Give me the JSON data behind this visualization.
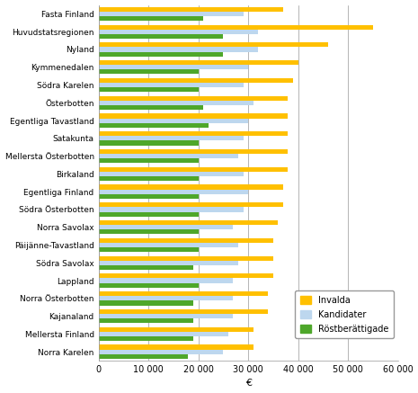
{
  "regions": [
    "Fasta Finland",
    "Huvudstatsregionen",
    "Nyland",
    "Kymmenedalen",
    "Södra Karelen",
    "Österbotten",
    "Egentliga Tavastland",
    "Satakunta",
    "Mellersta Österbotten",
    "Birkaland",
    "Egentliga Finland",
    "Södra Österbotten",
    "Norra Savolax",
    "Päijänne-Tavastland",
    "Södra Savolax",
    "Lappland",
    "Norra Österbotten",
    "Kajanaland",
    "Mellersta Finland",
    "Norra Karelen"
  ],
  "invalda": [
    37000,
    55000,
    46000,
    40000,
    39000,
    38000,
    38000,
    38000,
    38000,
    38000,
    37000,
    37000,
    36000,
    35000,
    35000,
    35000,
    34000,
    34000,
    31000,
    31000
  ],
  "kandidater": [
    29000,
    32000,
    32000,
    30000,
    29000,
    31000,
    30000,
    29000,
    28000,
    29000,
    30000,
    29000,
    27000,
    28000,
    28000,
    27000,
    27000,
    27000,
    26000,
    25000
  ],
  "rostberättigade": [
    21000,
    25000,
    25000,
    20000,
    20000,
    21000,
    22000,
    20000,
    20000,
    20000,
    20000,
    20000,
    20000,
    20000,
    19000,
    20000,
    19000,
    19000,
    19000,
    18000
  ],
  "color_invalda": "#FFC000",
  "color_kandidater": "#BDD7EE",
  "color_rostberättigade": "#4EA72A",
  "xlabel": "€",
  "legend_labels": [
    "Invalda",
    "Kandidater",
    "Röstberättigade"
  ],
  "xlim": [
    0,
    60000
  ],
  "xticks": [
    0,
    10000,
    20000,
    30000,
    40000,
    50000,
    60000
  ],
  "xtick_labels": [
    "0",
    "10 000",
    "20 000",
    "30 000",
    "40 000",
    "50 000",
    "60 000"
  ]
}
